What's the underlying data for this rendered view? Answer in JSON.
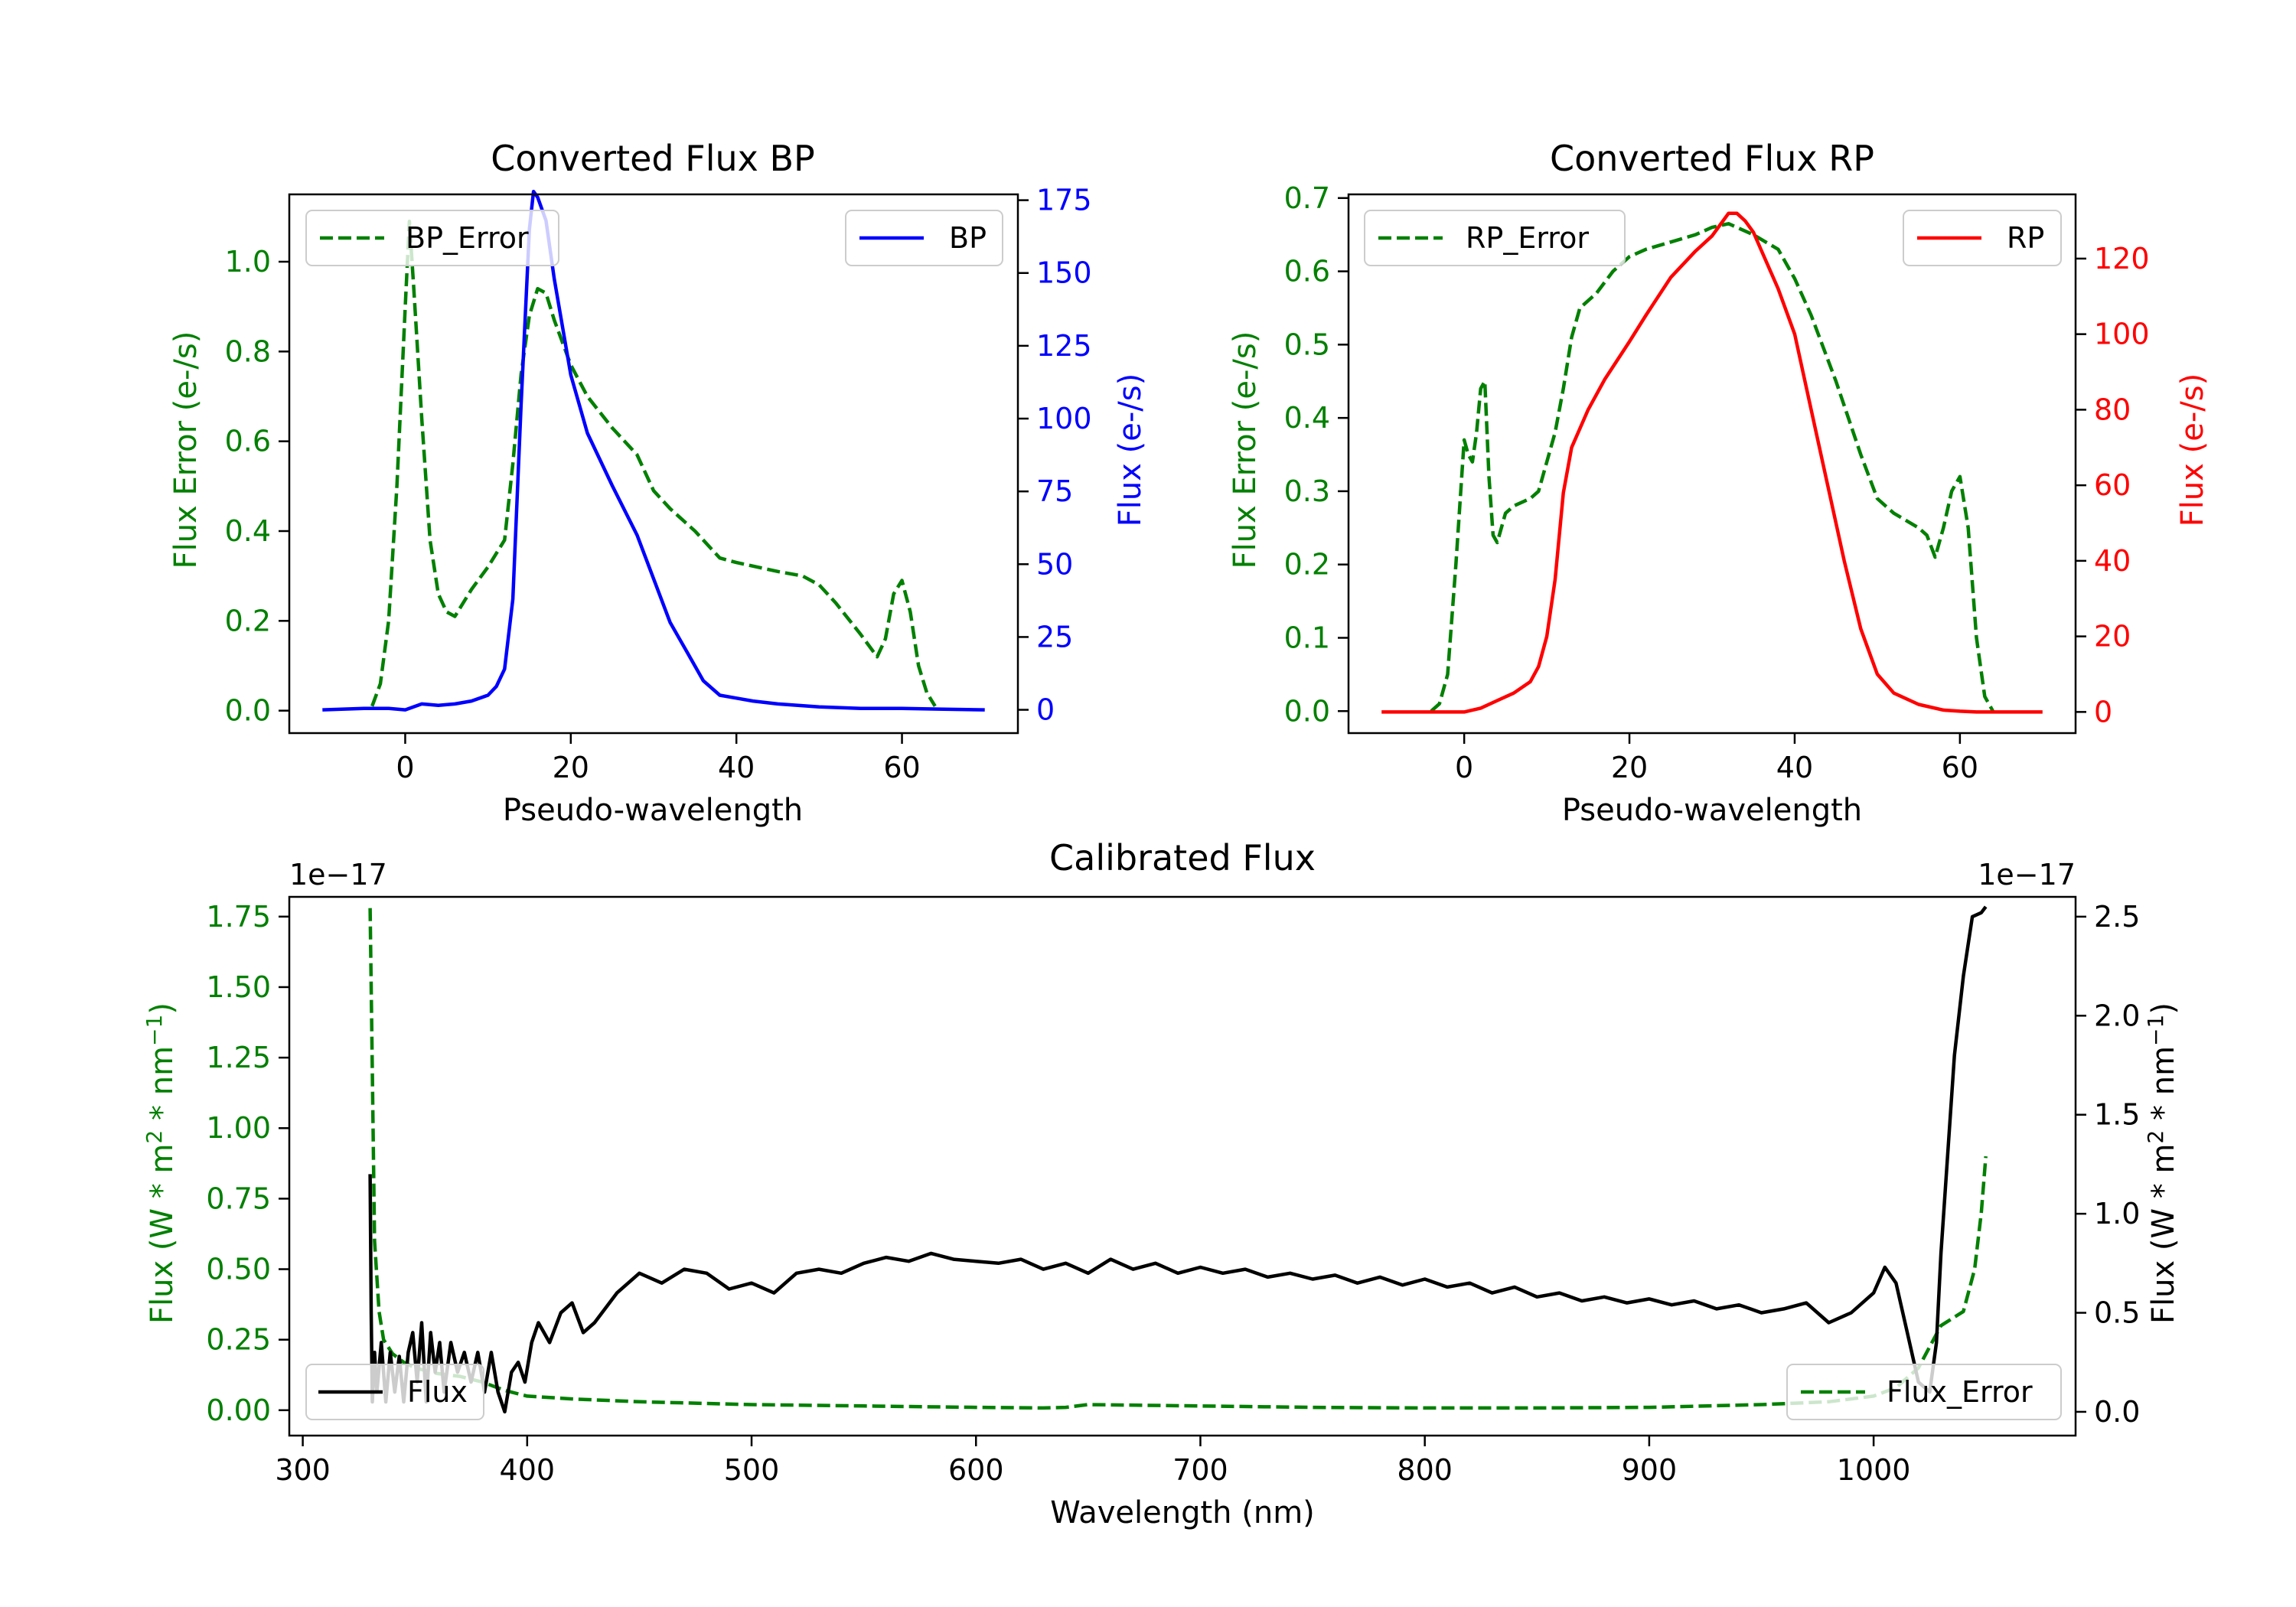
{
  "colors": {
    "green": "#008000",
    "blue": "#0000ff",
    "red": "#ff0000",
    "black": "#000000"
  },
  "chart_data": [
    {
      "type": "line",
      "title": "Converted Flux BP",
      "xlabel": "Pseudo-wavelength",
      "ylabel": "Flux Error (e-/s)",
      "ylabel2": "Flux (e-/s)",
      "xlim": [
        -14,
        74
      ],
      "ylim": [
        -0.05,
        1.15
      ],
      "ylim2": [
        -8,
        177
      ],
      "xticks": [
        "0",
        "20",
        "40",
        "60"
      ],
      "yticks": [
        "0.0",
        "0.2",
        "0.4",
        "0.6",
        "0.8",
        "1.0"
      ],
      "yticks2": [
        "0",
        "25",
        "50",
        "75",
        "100",
        "125",
        "150",
        "175"
      ],
      "series": [
        {
          "name": "BP_Error",
          "axis": "left",
          "style": "dashed",
          "color": "green",
          "x": [
            -4,
            -3,
            -2,
            -1,
            0,
            0.5,
            1,
            2,
            3,
            4,
            5,
            6,
            8,
            10,
            12,
            13,
            14,
            15,
            16,
            17,
            18,
            20,
            22,
            25,
            28,
            30,
            32,
            35,
            38,
            40,
            45,
            48,
            50,
            52,
            55,
            57,
            58,
            59,
            60,
            61,
            62,
            63,
            64
          ],
          "y": [
            0.01,
            0.06,
            0.2,
            0.5,
            0.9,
            1.09,
            0.95,
            0.65,
            0.38,
            0.26,
            0.22,
            0.21,
            0.27,
            0.32,
            0.38,
            0.55,
            0.75,
            0.88,
            0.94,
            0.93,
            0.87,
            0.77,
            0.7,
            0.63,
            0.57,
            0.49,
            0.45,
            0.4,
            0.34,
            0.33,
            0.31,
            0.3,
            0.28,
            0.24,
            0.17,
            0.12,
            0.16,
            0.26,
            0.29,
            0.22,
            0.1,
            0.04,
            0.01
          ]
        },
        {
          "name": "BP",
          "axis": "right",
          "style": "solid",
          "color": "blue",
          "x": [
            -10,
            -5,
            -2,
            0,
            2,
            4,
            6,
            8,
            10,
            11,
            12,
            13,
            14,
            15,
            15.5,
            16,
            17,
            18,
            20,
            22,
            25,
            28,
            30,
            32,
            34,
            36,
            38,
            40,
            42,
            45,
            50,
            55,
            60,
            65,
            70
          ],
          "y": [
            0,
            0.5,
            0.5,
            0,
            2,
            1.5,
            2,
            3,
            5,
            8,
            14,
            38,
            105,
            165,
            178,
            176,
            168,
            148,
            115,
            95,
            77,
            60,
            45,
            30,
            20,
            10,
            5,
            4,
            3,
            2,
            1,
            0.5,
            0.5,
            0.2,
            0
          ]
        }
      ],
      "legend": [
        {
          "label": "BP_Error",
          "placement": "upper-left"
        },
        {
          "label": "BP",
          "placement": "upper-right"
        }
      ]
    },
    {
      "type": "line",
      "title": "Converted Flux RP",
      "xlabel": "Pseudo-wavelength",
      "ylabel": "Flux Error (e-/s)",
      "ylabel2": "Flux (e-/s)",
      "xlim": [
        -14,
        74
      ],
      "ylim": [
        -0.03,
        0.705
      ],
      "ylim2": [
        -5.6,
        137
      ],
      "xticks": [
        "0",
        "20",
        "40",
        "60"
      ],
      "yticks": [
        "0.0",
        "0.1",
        "0.2",
        "0.3",
        "0.4",
        "0.5",
        "0.6",
        "0.7"
      ],
      "yticks2": [
        "0",
        "20",
        "40",
        "60",
        "80",
        "100",
        "120"
      ],
      "series": [
        {
          "name": "RP_Error",
          "axis": "left",
          "style": "dashed",
          "color": "green",
          "x": [
            -4,
            -3,
            -2,
            -1,
            0,
            0.5,
            1,
            1.5,
            2,
            2.5,
            3,
            3.5,
            4,
            5,
            6,
            8,
            9,
            10,
            11,
            12,
            13,
            14,
            16,
            18,
            20,
            22,
            25,
            28,
            30,
            32,
            35,
            38,
            40,
            42,
            45,
            48,
            50,
            52,
            55,
            56,
            57,
            58,
            59,
            60,
            61,
            62,
            63,
            64
          ],
          "y": [
            0.0,
            0.01,
            0.05,
            0.2,
            0.37,
            0.35,
            0.34,
            0.38,
            0.44,
            0.45,
            0.32,
            0.24,
            0.23,
            0.27,
            0.28,
            0.29,
            0.3,
            0.34,
            0.38,
            0.44,
            0.51,
            0.55,
            0.57,
            0.6,
            0.62,
            0.63,
            0.64,
            0.65,
            0.66,
            0.665,
            0.65,
            0.63,
            0.59,
            0.54,
            0.45,
            0.35,
            0.29,
            0.27,
            0.25,
            0.24,
            0.21,
            0.25,
            0.3,
            0.32,
            0.25,
            0.1,
            0.02,
            0.0
          ]
        },
        {
          "name": "RP",
          "axis": "right",
          "style": "solid",
          "color": "red",
          "x": [
            -10,
            -5,
            0,
            2,
            4,
            6,
            8,
            9,
            10,
            11,
            12,
            13,
            14,
            15,
            17,
            20,
            22,
            25,
            28,
            30,
            31,
            32,
            33,
            34,
            35,
            36,
            38,
            40,
            42,
            44,
            46,
            48,
            50,
            52,
            55,
            58,
            60,
            62,
            65,
            70
          ],
          "y": [
            0,
            0,
            0,
            1,
            3,
            5,
            8,
            12,
            20,
            35,
            58,
            70,
            75,
            80,
            88,
            98,
            105,
            115,
            122,
            126,
            129,
            132,
            132,
            130,
            127,
            122,
            112,
            100,
            80,
            60,
            40,
            22,
            10,
            5,
            2,
            0.5,
            0.2,
            0,
            0,
            0
          ]
        }
      ],
      "legend": [
        {
          "label": "RP_Error",
          "placement": "upper-left"
        },
        {
          "label": "RP",
          "placement": "upper-right"
        }
      ]
    },
    {
      "type": "line",
      "title": "Calibrated Flux",
      "xlabel": "Wavelength (nm)",
      "ylabel": "Flux (W * m^2 * nm^-1)",
      "ylabel2": "Flux (W * m^2 * nm^-1)",
      "offset_text_left": "1e−17",
      "offset_text_right": "1e−17",
      "xlim": [
        294,
        1090
      ],
      "ylim": [
        -0.09,
        1.82
      ],
      "ylim2": [
        -0.12,
        2.6
      ],
      "xticks": [
        "300",
        "400",
        "500",
        "600",
        "700",
        "800",
        "900",
        "1000"
      ],
      "yticks": [
        "0.00",
        "0.25",
        "0.50",
        "0.75",
        "1.00",
        "1.25",
        "1.50",
        "1.75"
      ],
      "yticks2": [
        "0.0",
        "0.5",
        "1.0",
        "1.5",
        "2.0",
        "2.5"
      ],
      "series": [
        {
          "name": "Flux_Error",
          "axis": "left",
          "style": "dashed",
          "color": "green",
          "x": [
            330,
            331,
            332,
            334,
            336,
            340,
            345,
            350,
            360,
            370,
            380,
            390,
            400,
            420,
            450,
            500,
            550,
            600,
            630,
            640,
            650,
            700,
            750,
            800,
            850,
            900,
            950,
            980,
            1000,
            1010,
            1020,
            1030,
            1040,
            1045,
            1048,
            1050
          ],
          "y": [
            1.78,
            1.2,
            0.6,
            0.35,
            0.25,
            0.2,
            0.17,
            0.15,
            0.13,
            0.12,
            0.1,
            0.07,
            0.05,
            0.04,
            0.03,
            0.02,
            0.015,
            0.01,
            0.008,
            0.01,
            0.02,
            0.015,
            0.01,
            0.008,
            0.008,
            0.01,
            0.02,
            0.03,
            0.05,
            0.08,
            0.15,
            0.3,
            0.35,
            0.5,
            0.7,
            0.9
          ]
        },
        {
          "name": "Flux",
          "axis": "right",
          "style": "solid",
          "color": "black",
          "x": [
            330,
            330.5,
            331,
            332,
            333,
            335,
            337,
            339,
            341,
            343,
            345,
            347,
            349,
            351,
            353,
            355,
            357,
            359,
            361,
            363,
            366,
            369,
            372,
            375,
            378,
            381,
            384,
            387,
            390,
            393,
            396,
            399,
            402,
            405,
            410,
            415,
            420,
            425,
            430,
            440,
            450,
            460,
            470,
            480,
            490,
            500,
            510,
            520,
            530,
            540,
            550,
            560,
            570,
            580,
            590,
            600,
            610,
            620,
            630,
            640,
            650,
            660,
            670,
            680,
            690,
            700,
            710,
            720,
            730,
            740,
            750,
            760,
            770,
            780,
            790,
            800,
            810,
            820,
            830,
            840,
            850,
            860,
            870,
            880,
            890,
            900,
            910,
            920,
            930,
            940,
            950,
            960,
            970,
            980,
            990,
            1000,
            1005,
            1010,
            1015,
            1020,
            1025,
            1028,
            1030,
            1033,
            1036,
            1040,
            1044,
            1048,
            1050
          ],
          "y": [
            1.2,
            0.5,
            0.05,
            0.3,
            0.1,
            0.35,
            0.05,
            0.3,
            0.1,
            0.28,
            0.05,
            0.3,
            0.4,
            0.15,
            0.45,
            0.05,
            0.4,
            0.2,
            0.35,
            0.1,
            0.35,
            0.2,
            0.3,
            0.15,
            0.3,
            0.1,
            0.3,
            0.1,
            0.0,
            0.2,
            0.25,
            0.15,
            0.35,
            0.45,
            0.35,
            0.5,
            0.55,
            0.4,
            0.45,
            0.6,
            0.7,
            0.65,
            0.72,
            0.7,
            0.62,
            0.65,
            0.6,
            0.7,
            0.72,
            0.7,
            0.75,
            0.78,
            0.76,
            0.8,
            0.77,
            0.76,
            0.75,
            0.77,
            0.72,
            0.75,
            0.7,
            0.77,
            0.72,
            0.75,
            0.7,
            0.73,
            0.7,
            0.72,
            0.68,
            0.7,
            0.67,
            0.69,
            0.65,
            0.68,
            0.64,
            0.67,
            0.63,
            0.65,
            0.6,
            0.63,
            0.58,
            0.6,
            0.56,
            0.58,
            0.55,
            0.57,
            0.54,
            0.56,
            0.52,
            0.54,
            0.5,
            0.52,
            0.55,
            0.45,
            0.5,
            0.6,
            0.73,
            0.65,
            0.4,
            0.15,
            0.1,
            0.35,
            0.8,
            1.3,
            1.8,
            2.2,
            2.5,
            2.52,
            2.55
          ]
        }
      ],
      "legend": [
        {
          "label": "Flux",
          "placement": "lower-left"
        },
        {
          "label": "Flux_Error",
          "placement": "lower-right"
        }
      ]
    }
  ]
}
